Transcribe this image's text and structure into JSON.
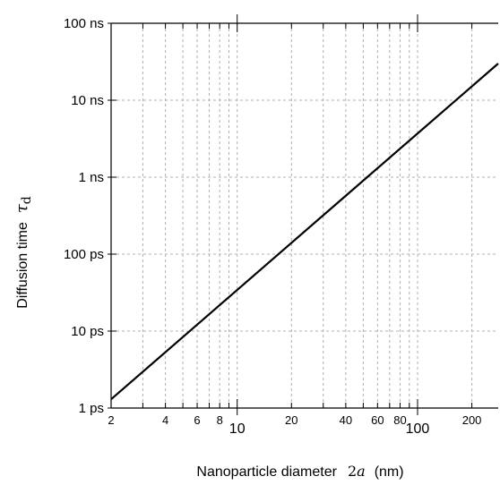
{
  "chart_data": {
    "type": "line",
    "x_scale": "log",
    "y_scale": "log",
    "grid": true,
    "xlim": [
      2,
      280
    ],
    "ylim_seconds": [
      1e-12,
      1e-07
    ],
    "xlabel": {
      "text": "Nanoparticle diameter",
      "math": "2a",
      "math_num": "2",
      "math_var": "a",
      "unit": "(nm)"
    },
    "ylabel": {
      "text": "Diffusion time",
      "math_var": "τ",
      "math_sub": "d"
    },
    "x_major_ticks": [
      {
        "value": 10,
        "label": "10"
      },
      {
        "value": 100,
        "label": "100"
      }
    ],
    "x_minor_ticks": [
      {
        "value": 2,
        "label": "2"
      },
      {
        "value": 3,
        "label": ""
      },
      {
        "value": 4,
        "label": "4"
      },
      {
        "value": 5,
        "label": ""
      },
      {
        "value": 6,
        "label": "6"
      },
      {
        "value": 7,
        "label": ""
      },
      {
        "value": 8,
        "label": "8"
      },
      {
        "value": 9,
        "label": ""
      },
      {
        "value": 20,
        "label": "20"
      },
      {
        "value": 30,
        "label": ""
      },
      {
        "value": 40,
        "label": "40"
      },
      {
        "value": 50,
        "label": ""
      },
      {
        "value": 60,
        "label": "60"
      },
      {
        "value": 70,
        "label": ""
      },
      {
        "value": 80,
        "label": "80"
      },
      {
        "value": 90,
        "label": ""
      },
      {
        "value": 200,
        "label": "200"
      }
    ],
    "y_ticks": [
      {
        "value": 1e-12,
        "label": "1 ps"
      },
      {
        "value": 1e-11,
        "label": "10 ps"
      },
      {
        "value": 1e-10,
        "label": "100 ps"
      },
      {
        "value": 1e-09,
        "label": "1 ns"
      },
      {
        "value": 1e-08,
        "label": "10 ns"
      },
      {
        "value": 1e-07,
        "label": "100 ns"
      }
    ],
    "series": [
      {
        "color": "#000000",
        "x": [
          2,
          280
        ],
        "y_seconds": [
          1.3e-12,
          3e-08
        ]
      }
    ]
  }
}
